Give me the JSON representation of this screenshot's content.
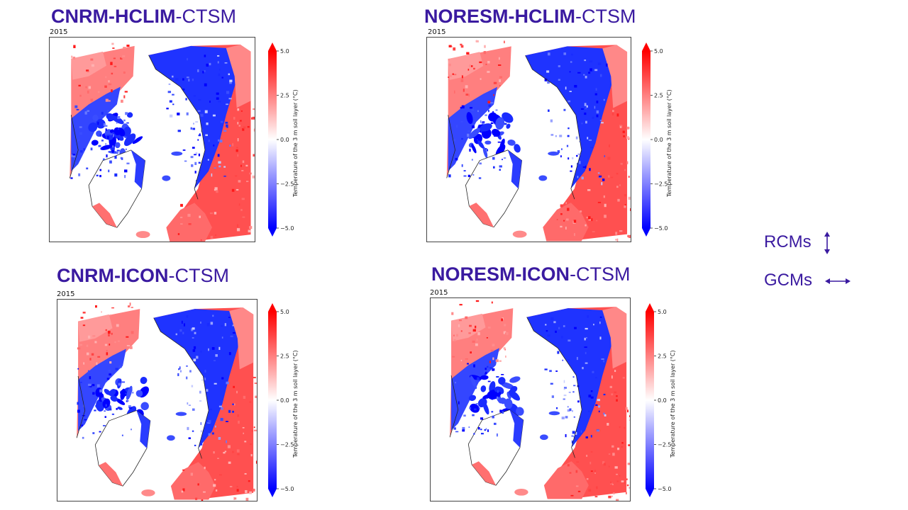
{
  "colors": {
    "title": "#3a1aa0",
    "warm": "#ff0000",
    "neutral": "#ffffff",
    "cold": "#0000ff"
  },
  "colorbar": {
    "label": "Temperature of the 3 m soil layer (°C)",
    "min": -5.0,
    "max": 5.0,
    "ticks": [
      "5.0",
      "2.5",
      "0.0",
      "−2.5",
      "−5.0"
    ],
    "extend": "both"
  },
  "panels": [
    {
      "title_bold": "CNRM-HCLIM",
      "title_rest": "-CTSM",
      "year": "2015"
    },
    {
      "title_bold": "NORESM-HCLIM",
      "title_rest": "-CTSM",
      "year": "2015"
    },
    {
      "title_bold": "CNRM-ICON",
      "title_rest": "-CTSM",
      "year": "2015"
    },
    {
      "title_bold": "NORESM-ICON",
      "title_rest": "-CTSM",
      "year": "2015"
    }
  ],
  "legend": {
    "rcms_label": "RCMs",
    "rcms_icon": "vertical-double-arrow-icon",
    "gcms_label": "GCMs",
    "gcms_icon": "horizontal-double-arrow-icon"
  }
}
